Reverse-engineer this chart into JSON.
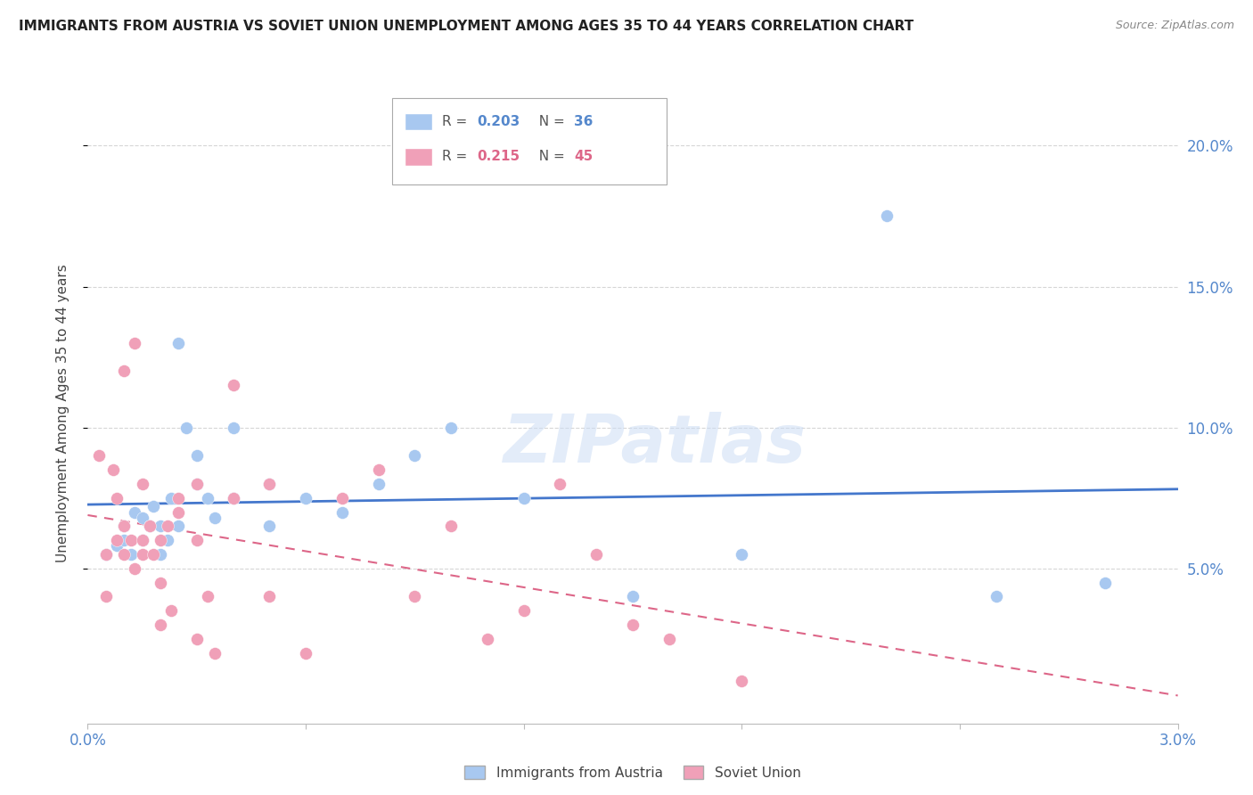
{
  "title": "IMMIGRANTS FROM AUSTRIA VS SOVIET UNION UNEMPLOYMENT AMONG AGES 35 TO 44 YEARS CORRELATION CHART",
  "source": "Source: ZipAtlas.com",
  "ylabel": "Unemployment Among Ages 35 to 44 years",
  "austria_color": "#a8c8f0",
  "soviet_color": "#f0a0b8",
  "austria_line_color": "#4477cc",
  "soviet_line_color": "#dd6688",
  "background_color": "#ffffff",
  "grid_color": "#cccccc",
  "text_color": "#5588cc",
  "title_color": "#222222",
  "source_color": "#888888",
  "watermark": "ZIPatlas",
  "austria_x": [
    0.0005,
    0.0008,
    0.001,
    0.001,
    0.0012,
    0.0013,
    0.0015,
    0.0015,
    0.0017,
    0.0018,
    0.002,
    0.002,
    0.0022,
    0.0023,
    0.0025,
    0.0025,
    0.0027,
    0.003,
    0.003,
    0.0033,
    0.0035,
    0.004,
    0.004,
    0.005,
    0.005,
    0.006,
    0.007,
    0.008,
    0.009,
    0.01,
    0.012,
    0.015,
    0.018,
    0.022,
    0.025,
    0.028
  ],
  "austria_y": [
    0.055,
    0.058,
    0.06,
    0.065,
    0.055,
    0.07,
    0.06,
    0.068,
    0.065,
    0.072,
    0.055,
    0.065,
    0.06,
    0.075,
    0.065,
    0.13,
    0.1,
    0.08,
    0.09,
    0.075,
    0.068,
    0.075,
    0.1,
    0.065,
    0.08,
    0.075,
    0.07,
    0.08,
    0.09,
    0.1,
    0.075,
    0.04,
    0.055,
    0.175,
    0.04,
    0.045
  ],
  "soviet_x": [
    0.0003,
    0.0005,
    0.0005,
    0.0007,
    0.0008,
    0.0008,
    0.001,
    0.001,
    0.001,
    0.0012,
    0.0013,
    0.0013,
    0.0015,
    0.0015,
    0.0015,
    0.0017,
    0.0018,
    0.002,
    0.002,
    0.002,
    0.0022,
    0.0023,
    0.0025,
    0.0025,
    0.003,
    0.003,
    0.003,
    0.0033,
    0.0035,
    0.004,
    0.004,
    0.005,
    0.005,
    0.006,
    0.007,
    0.008,
    0.009,
    0.01,
    0.011,
    0.012,
    0.013,
    0.014,
    0.015,
    0.016,
    0.018
  ],
  "soviet_y": [
    0.09,
    0.055,
    0.04,
    0.085,
    0.075,
    0.06,
    0.065,
    0.055,
    0.12,
    0.06,
    0.05,
    0.13,
    0.06,
    0.055,
    0.08,
    0.065,
    0.055,
    0.06,
    0.045,
    0.03,
    0.065,
    0.035,
    0.07,
    0.075,
    0.08,
    0.06,
    0.025,
    0.04,
    0.02,
    0.075,
    0.115,
    0.08,
    0.04,
    0.02,
    0.075,
    0.085,
    0.04,
    0.065,
    0.025,
    0.035,
    0.08,
    0.055,
    0.03,
    0.025,
    0.01
  ],
  "xlim": [
    0.0,
    0.03
  ],
  "ylim": [
    -0.005,
    0.215
  ],
  "xticks": [
    0.0,
    0.006,
    0.012,
    0.018,
    0.024,
    0.03
  ],
  "xtick_labels": [
    "0.0%",
    "",
    "",
    "",
    "",
    "3.0%"
  ],
  "yticks_right": [
    0.05,
    0.1,
    0.15,
    0.2
  ],
  "ytick_labels_right": [
    "5.0%",
    "10.0%",
    "15.0%",
    "20.0%"
  ]
}
